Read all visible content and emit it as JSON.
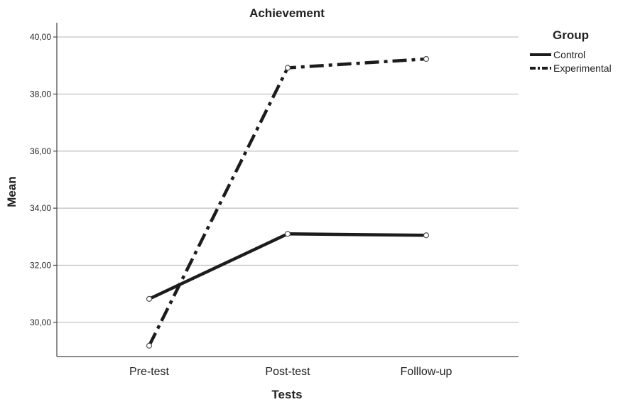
{
  "chart_data": {
    "type": "line",
    "title": "Achievement",
    "xlabel": "Tests",
    "ylabel": "Mean",
    "categories": [
      "Pre-test",
      "Post-test",
      "Folllow-up"
    ],
    "ylim": [
      28.8,
      40.5
    ],
    "yticks": [
      30,
      32,
      34,
      36,
      38,
      40
    ],
    "ytick_labels": [
      "30,00",
      "32,00",
      "34,00",
      "36,00",
      "38,00",
      "40,00"
    ],
    "grid": true,
    "legend": {
      "title": "Group",
      "placement": "right"
    },
    "series": [
      {
        "name": "Control",
        "values": [
          30.82,
          33.1,
          33.05
        ],
        "style": "solid",
        "color": "#1c1c1c"
      },
      {
        "name": "Experimental",
        "values": [
          29.18,
          38.92,
          39.23
        ],
        "style": "dash-dot",
        "color": "#1c1c1c"
      }
    ]
  }
}
